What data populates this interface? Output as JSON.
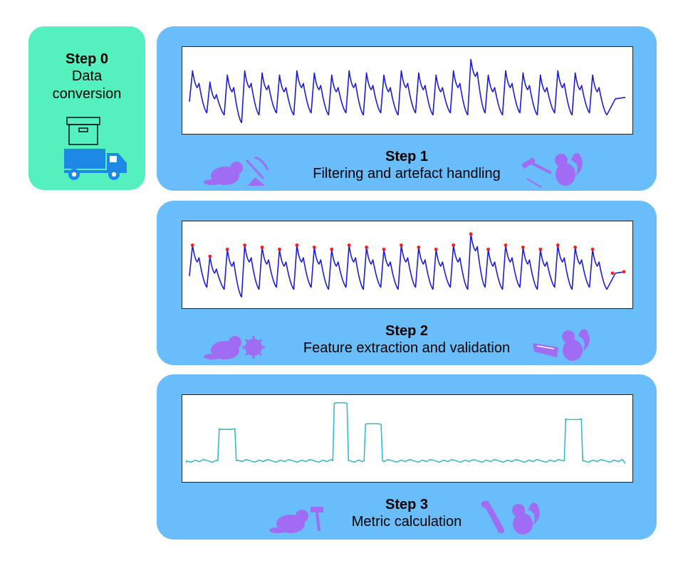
{
  "step0": {
    "title": "Step 0",
    "subtitle_line1": "Data",
    "subtitle_line2": "conversion",
    "icon": "truck-with-box-icon"
  },
  "steps": [
    {
      "title": "Step 1",
      "subtitle": "Filtering and artefact handling",
      "left_icon": "beaver-pickaxe-icon",
      "right_icon": "squirrel-hammer-icon"
    },
    {
      "title": "Step 2",
      "subtitle": "Feature extraction and validation",
      "left_icon": "beaver-gear-icon",
      "right_icon": "squirrel-saw-icon"
    },
    {
      "title": "Step 3",
      "subtitle": "Metric calculation",
      "left_icon": "beaver-hammer-icon",
      "right_icon": "squirrel-wrench-icon"
    }
  ],
  "colors": {
    "step0_bg": "#54f0be",
    "panel_bg": "#68bdfa",
    "signal": "#1a1adb",
    "peak": "#ff1a1a",
    "metric": "#2ab8c4",
    "icon": "#a16cf4",
    "truck": "#1e88e5"
  }
}
